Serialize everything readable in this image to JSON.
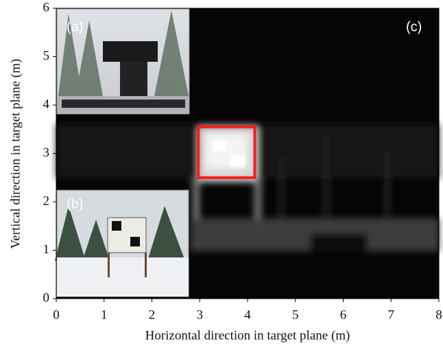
{
  "chart_data": {
    "type": "image",
    "xlabel": "Horizontal direction in target plane (m)",
    "ylabel": "Vertical direction in target plane (m)",
    "xlim": [
      0,
      8
    ],
    "ylim": [
      0,
      6
    ],
    "xticks": [
      0,
      1,
      2,
      3,
      4,
      5,
      6,
      7,
      8
    ],
    "yticks": [
      0,
      1,
      2,
      3,
      4,
      5,
      6
    ],
    "panel_labels": [
      "(a)",
      "(b)",
      "(c)"
    ],
    "highlight": {
      "x": [
        2.97,
        4.15
      ],
      "y": [
        2.5,
        3.55
      ],
      "color": "#ff1a1a"
    }
  }
}
